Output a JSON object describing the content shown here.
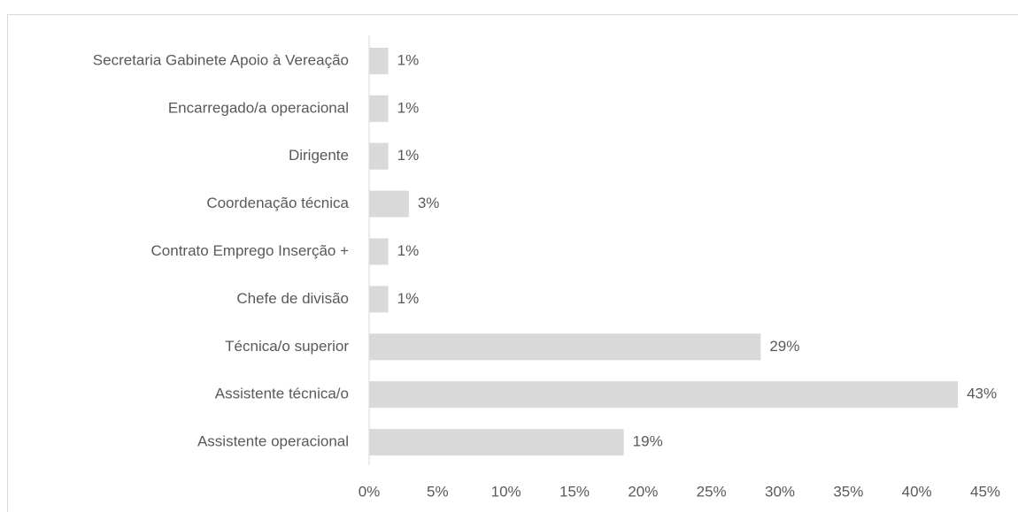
{
  "chart_data": {
    "type": "bar",
    "orientation": "horizontal",
    "categories": [
      "Secretaria Gabinete Apoio à Vereação",
      "Encarregado/a operacional",
      "Dirigente",
      "Coordenação técnica",
      "Contrato Emprego Inserção +",
      "Chefe de divisão",
      "Técnica/o superior",
      "Assistente técnica/o",
      "Assistente operacional"
    ],
    "values": [
      1.4,
      1.4,
      1.4,
      2.9,
      1.4,
      1.4,
      28.6,
      43.0,
      18.6
    ],
    "value_labels": [
      "1%",
      "1%",
      "1%",
      "3%",
      "1%",
      "1%",
      "29%",
      "43%",
      "19%"
    ],
    "color": "#d9d9d9",
    "xlim": [
      0,
      45
    ],
    "xticks": [
      {
        "value": 0,
        "label": "0%"
      },
      {
        "value": 5,
        "label": "5%"
      },
      {
        "value": 10,
        "label": "10%"
      },
      {
        "value": 15,
        "label": "15%"
      },
      {
        "value": 20,
        "label": "20%"
      },
      {
        "value": 25,
        "label": "25%"
      },
      {
        "value": 30,
        "label": "30%"
      },
      {
        "value": 35,
        "label": "35%"
      },
      {
        "value": 40,
        "label": "40%"
      },
      {
        "value": 45,
        "label": "45%"
      }
    ],
    "grid": false
  }
}
